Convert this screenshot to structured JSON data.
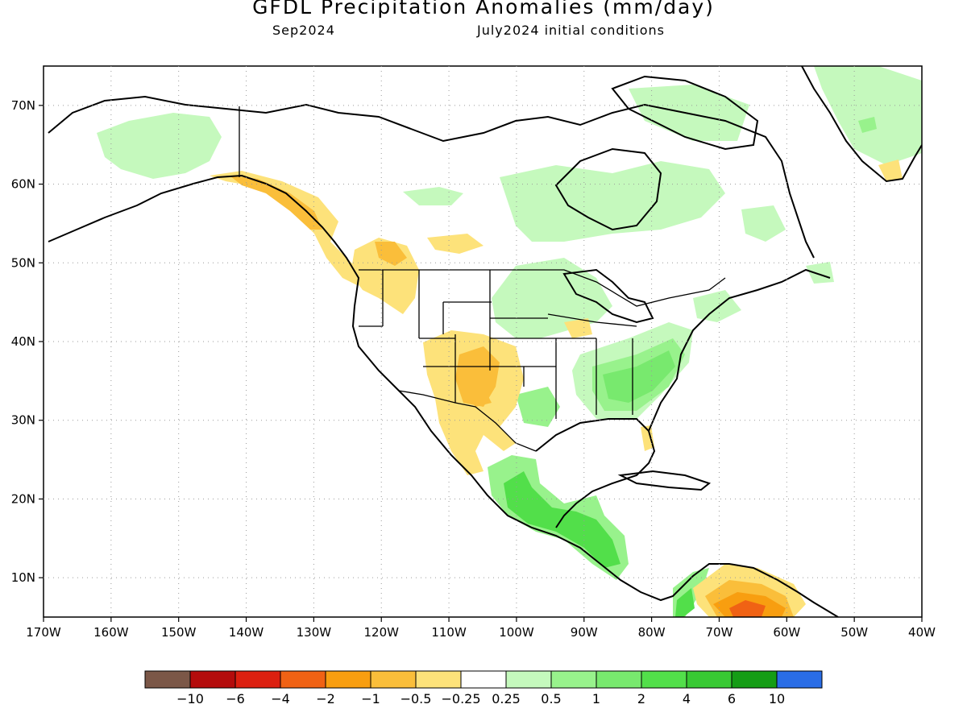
{
  "header": {
    "title": "GFDL Precipitation Anomalies (mm/day)",
    "valid_month": "Sep2024",
    "init": "July2024 initial conditions"
  },
  "axes": {
    "lon_ticks": [
      "170W",
      "160W",
      "150W",
      "140W",
      "130W",
      "120W",
      "110W",
      "100W",
      "90W",
      "80W",
      "70W",
      "60W",
      "50W",
      "40W"
    ],
    "lat_ticks": [
      "10N",
      "20N",
      "30N",
      "40N",
      "50N",
      "60N",
      "70N"
    ],
    "lon_range": [
      -170,
      -40
    ],
    "lat_range": [
      5,
      75
    ],
    "grid": "dotted"
  },
  "colorbar": {
    "colors": [
      "#7b5747",
      "#b40c0c",
      "#dc2010",
      "#f06214",
      "#f89e10",
      "#fabe3a",
      "#fde27a",
      "#ffffff",
      "#c5f9bd",
      "#98f28c",
      "#78e96e",
      "#52df4a",
      "#38c933",
      "#159d16",
      "#2a6de6"
    ],
    "labels": [
      "−10",
      "−6",
      "−4",
      "−2",
      "−1",
      "−0.5",
      "−0.25",
      "0.25",
      "0.5",
      "1",
      "2",
      "4",
      "6",
      "10"
    ]
  },
  "legend_colors": {
    "dry_light": "#fde27a",
    "dry_mid": "#fabe3a",
    "dry_strong": "#f06214",
    "wet_light": "#c5f9bd",
    "wet_mid": "#98f28c",
    "wet_strong": "#52df4a"
  }
}
